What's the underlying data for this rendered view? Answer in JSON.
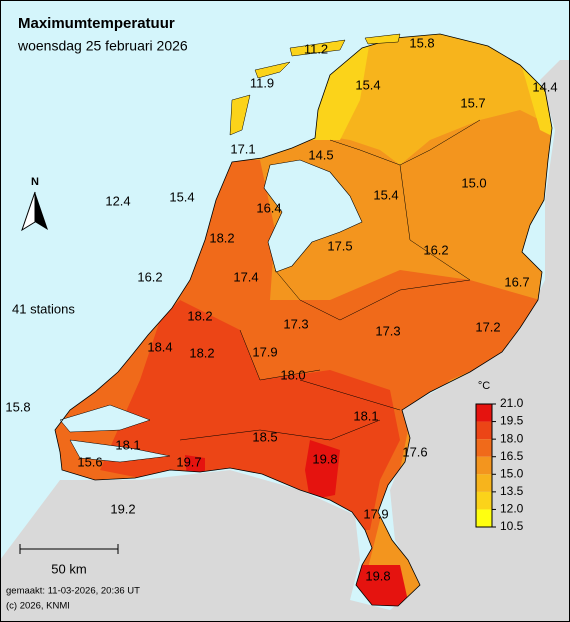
{
  "header": {
    "title": "Maximumtemperatuur",
    "subtitle": "woensdag 25 februari 2026"
  },
  "stations": {
    "count_label": "41 stations",
    "labels": [
      "11.2",
      "15.8",
      "11.9",
      "15.4",
      "15.7",
      "14.4",
      "17.1",
      "14.5",
      "15.0",
      "15.4",
      "12.4",
      "15.4",
      "16.4",
      "18.2",
      "17.5",
      "16.2",
      "16.2",
      "17.4",
      "16.7",
      "18.2",
      "17.3",
      "17.3",
      "17.2",
      "18.4",
      "18.2",
      "17.9",
      "18.0",
      "15.8",
      "18.1",
      "18.5",
      "18.1",
      "17.6",
      "15.6",
      "19.7",
      "19.8",
      "19.2",
      "17.9",
      "19.8"
    ]
  },
  "legend": {
    "unit": "°C",
    "ticks": [
      {
        "value": 21,
        "label": "21.0"
      },
      {
        "value": 19.5,
        "label": "19.5"
      },
      {
        "value": 18,
        "label": "18.0"
      },
      {
        "value": 16.5,
        "label": "16.5"
      },
      {
        "value": 15,
        "label": "15.0"
      },
      {
        "value": 13.5,
        "label": "13.5"
      },
      {
        "value": 12,
        "label": "12.0"
      },
      {
        "value": 10.5,
        "label": "10.5"
      }
    ],
    "colors": [
      "#e5130f",
      "#ec4516",
      "#f06a1a",
      "#f3951e",
      "#f7b41c",
      "#fbd31a",
      "#ffff10"
    ]
  },
  "north": "N",
  "scale_bar": "50 km",
  "footer": {
    "made": "gemaakt: 11-03-2026, 20:36 UT",
    "copyright": "(c) 2026, KNMI"
  }
}
